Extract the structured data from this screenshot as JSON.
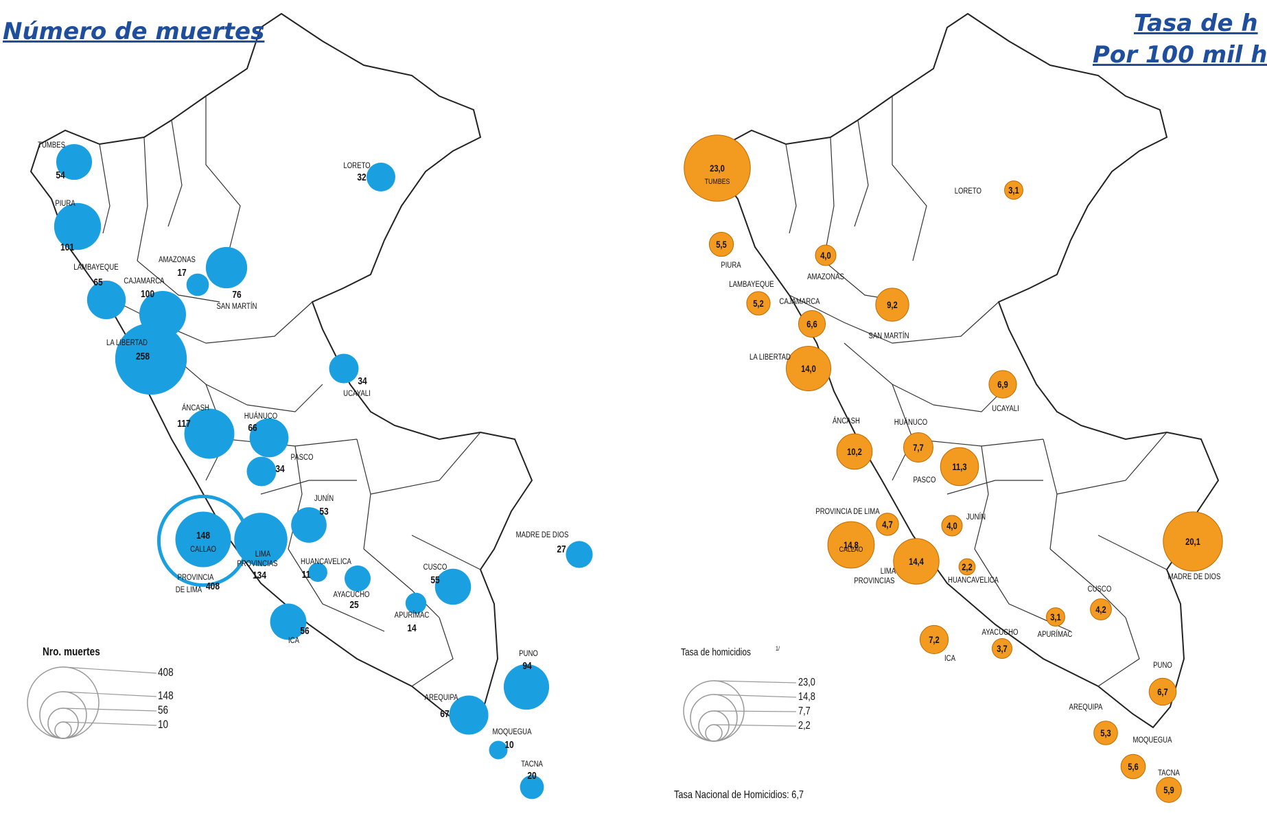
{
  "left_panel": {
    "title": "Número de muertes",
    "color": "#1aa0e0",
    "legend": {
      "title": "Nro. muertes",
      "values": [
        "408",
        "148",
        "56",
        "10"
      ]
    },
    "regions": [
      {
        "name": "TUMBES",
        "value": "54"
      },
      {
        "name": "PIURA",
        "value": "101"
      },
      {
        "name": "LAMBAYEQUE",
        "value": "65"
      },
      {
        "name": "CAJAMARCA",
        "value": "100"
      },
      {
        "name": "AMAZONAS",
        "value": "17"
      },
      {
        "name": "SAN MARTÍN",
        "value": "76"
      },
      {
        "name": "LORETO",
        "value": "32"
      },
      {
        "name": "LA LIBERTAD",
        "value": "258"
      },
      {
        "name": "UCAYALI",
        "value": "34"
      },
      {
        "name": "ÁNCASH",
        "value": "117"
      },
      {
        "name": "HUÁNUCO",
        "value": "66"
      },
      {
        "name": "PASCO",
        "value": "34"
      },
      {
        "name": "JUNÍN",
        "value": "53"
      },
      {
        "name": "CALLAO",
        "value": "148"
      },
      {
        "name": "PROVINCIA DE LIMA",
        "value": "408"
      },
      {
        "name": "LIMA PROVINCIAS",
        "value": "134"
      },
      {
        "name": "HUANCAVELICA",
        "value": "11"
      },
      {
        "name": "AYACUCHO",
        "value": "25"
      },
      {
        "name": "APURÍMAC",
        "value": "14"
      },
      {
        "name": "CUSCO",
        "value": "55"
      },
      {
        "name": "MADRE DE DIOS",
        "value": "27"
      },
      {
        "name": "ICA",
        "value": "56"
      },
      {
        "name": "PUNO",
        "value": "94"
      },
      {
        "name": "AREQUIPA",
        "value": "67"
      },
      {
        "name": "MOQUEGUA",
        "value": "10"
      },
      {
        "name": "TACNA",
        "value": "20"
      }
    ]
  },
  "right_panel": {
    "title_line1": "Tasa de h",
    "title_line2": "Por 100 mil h",
    "color": "#f39a20",
    "legend": {
      "title": "Tasa de homicidios",
      "superscript": "1/",
      "values": [
        "23,0",
        "14,8",
        "7,7",
        "2,2"
      ]
    },
    "national_rate": "Tasa Nacional de Homicidios: 6,7",
    "regions": [
      {
        "name": "TUMBES",
        "value": "23,0"
      },
      {
        "name": "LORETO",
        "value": "3,1"
      },
      {
        "name": "PIURA",
        "value": "5,5"
      },
      {
        "name": "AMAZONAS",
        "value": "4,0"
      },
      {
        "name": "LAMBAYEQUE",
        "value": "5,2"
      },
      {
        "name": "CAJAMARCA",
        "value": "6,6"
      },
      {
        "name": "SAN MARTÍN",
        "value": "9,2"
      },
      {
        "name": "LA LIBERTAD",
        "value": "14,0"
      },
      {
        "name": "UCAYALI",
        "value": "6,9"
      },
      {
        "name": "ÁNCASH",
        "value": "10,2"
      },
      {
        "name": "HUÁNUCO",
        "value": "7,7"
      },
      {
        "name": "PASCO",
        "value": "11,3"
      },
      {
        "name": "PROVINCIA DE LIMA",
        "value": "4,7"
      },
      {
        "name": "CALLAO",
        "value": "14,8"
      },
      {
        "name": "JUNÍN",
        "value": "4,0"
      },
      {
        "name": "LIMA PROVINCIAS",
        "value": "14,4"
      },
      {
        "name": "HUANCAVELICA",
        "value": "2,2"
      },
      {
        "name": "MADRE DE DIOS",
        "value": "20,1"
      },
      {
        "name": "CUSCO",
        "value": "4,2"
      },
      {
        "name": "APURÍMAC",
        "value": "3,1"
      },
      {
        "name": "AYACUCHO",
        "value": "3,7"
      },
      {
        "name": "ICA",
        "value": "7,2"
      },
      {
        "name": "PUNO",
        "value": "6,7"
      },
      {
        "name": "AREQUIPA",
        "value": "5,3"
      },
      {
        "name": "MOQUEGUA",
        "value": "5,6"
      },
      {
        "name": "TACNA",
        "value": "5,9"
      }
    ]
  }
}
